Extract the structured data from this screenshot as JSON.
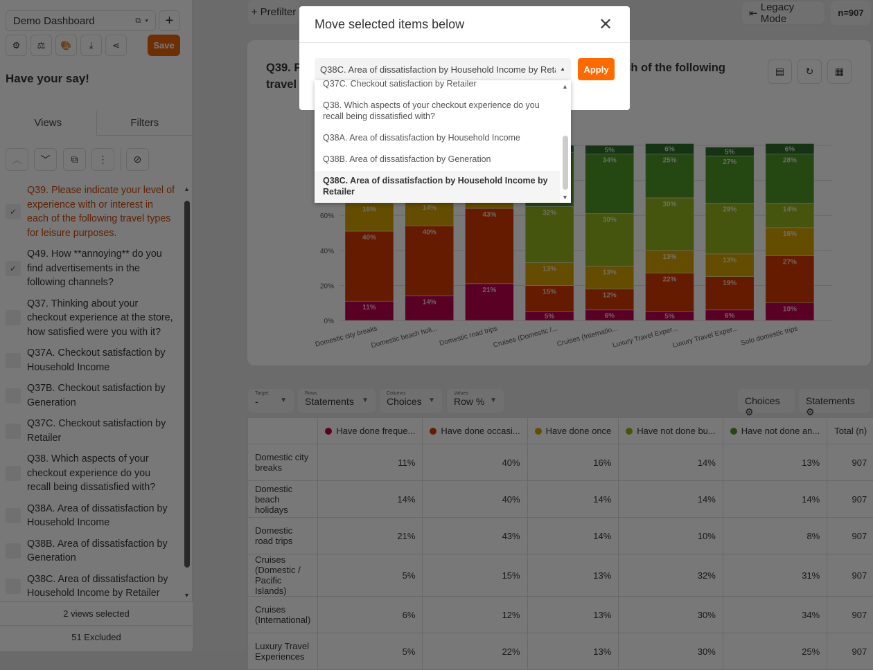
{
  "sidebar": {
    "dashboard_name": "Demo Dashboard",
    "save_label": "Save",
    "heading": "Have your say!",
    "tabs": [
      "Views",
      "Filters"
    ],
    "views": [
      {
        "label": "Q39. Please indicate your level of experience with or interest in each of the following travel types for leisure purposes.",
        "checked": true,
        "active": true
      },
      {
        "label": "Q49. How **annoying** do you find advertisements in the following channels?",
        "checked": true
      },
      {
        "label": "Q37. Thinking about your checkout experience at the store, how satisfied were you with it?",
        "checked": false
      },
      {
        "label": "Q37A. Checkout satisfaction by Household Income",
        "checked": false
      },
      {
        "label": "Q37B. Checkout satisfaction by Generation",
        "checked": false
      },
      {
        "label": "Q37C. Checkout satisfaction by Retailer",
        "checked": false
      },
      {
        "label": "Q38. Which aspects of your checkout experience do you recall being dissatisfied with?",
        "checked": false
      },
      {
        "label": "Q38A. Area of dissatisfaction by Household Income",
        "checked": false
      },
      {
        "label": "Q38B. Area of dissatisfaction by Generation",
        "checked": false
      },
      {
        "label": "Q38C. Area of dissatisfaction by Household Income by Retailer",
        "checked": false
      }
    ],
    "selected_count": "2 views selected",
    "excluded": "51 Excluded"
  },
  "topbar": {
    "prefilter": "Prefilter",
    "legacy_mode": "Legacy Mode",
    "n": "n=907"
  },
  "card": {
    "title": "Q39. Please indicate your level of experience with or interest in each of the following travel types for leisure purposes."
  },
  "controls": {
    "target": {
      "label": "Target",
      "value": "-"
    },
    "rows": {
      "label": "Rows",
      "value": "Statements"
    },
    "columns": {
      "label": "Columns",
      "value": "Choices"
    },
    "values": {
      "label": "Values",
      "value": "Row %"
    },
    "choices_btn": "Choices",
    "statements_btn": "Statements"
  },
  "table": {
    "headers": [
      "Have done freque...",
      "Have done occasi...",
      "Have done once",
      "Have not done bu...",
      "Have not done an...",
      "Total (n)"
    ],
    "rows": [
      {
        "label": "Domestic city breaks",
        "values": [
          "11%",
          "40%",
          "16%",
          "14%",
          "13%",
          "907"
        ]
      },
      {
        "label": "Domestic beach holidays",
        "values": [
          "14%",
          "40%",
          "14%",
          "14%",
          "14%",
          "907"
        ]
      },
      {
        "label": "Domestic road trips",
        "values": [
          "21%",
          "43%",
          "14%",
          "10%",
          "8%",
          "907"
        ]
      },
      {
        "label": "Cruises (Domestic / Pacific Islands)",
        "values": [
          "5%",
          "15%",
          "13%",
          "32%",
          "31%",
          "907"
        ]
      },
      {
        "label": "Cruises (International)",
        "values": [
          "6%",
          "12%",
          "13%",
          "30%",
          "34%",
          "907"
        ]
      },
      {
        "label": "Luxury Travel Experiences",
        "values": [
          "5%",
          "22%",
          "13%",
          "30%",
          "25%",
          "907"
        ]
      }
    ]
  },
  "chart_data": {
    "type": "bar",
    "stacked": true,
    "categories": [
      "Domestic city breaks",
      "Domestic beach holi...",
      "Domestic road trips",
      "Cruises (Domestic /...",
      "Cruises (Internatio...",
      "Luxury Travel Exper...",
      "Luxury Travel Exper...",
      "Solo domestic trips"
    ],
    "ylim": [
      0,
      100
    ],
    "yticks": [
      "0%",
      "20%",
      "40%",
      "60%"
    ],
    "grid": true,
    "series": [
      {
        "name": "Have done freque...",
        "color": "#c2004f",
        "values": [
          11,
          14,
          21,
          5,
          6,
          5,
          6,
          10
        ]
      },
      {
        "name": "Have done occasi...",
        "color": "#d43a00",
        "values": [
          40,
          40,
          43,
          15,
          12,
          22,
          19,
          27
        ]
      },
      {
        "name": "Have done once",
        "color": "#d4a300",
        "values": [
          16,
          14,
          14,
          13,
          13,
          13,
          13,
          16
        ]
      },
      {
        "name": "Have not done bu...",
        "color": "#96b41c",
        "values": [
          14,
          14,
          10,
          32,
          30,
          30,
          29,
          14
        ]
      },
      {
        "name": "Have not done an...",
        "color": "#4f9a28",
        "values": [
          13,
          14,
          8,
          31,
          34,
          25,
          27,
          28
        ]
      },
      {
        "color": "#2f6e2b",
        "values": [
          6,
          4,
          4,
          4,
          5,
          6,
          5,
          6
        ]
      }
    ]
  },
  "modal": {
    "title": "Move selected items below",
    "selected": "Q38C. Area of dissatisfaction by Household Income by Retailer",
    "apply": "Apply",
    "options": [
      "Q37C. Checkout satisfaction by Retailer",
      "Q38. Which aspects of your checkout experience do you recall being dissatisfied with?",
      "Q38A. Area of dissatisfaction by Household Income",
      "Q38B. Area of dissatisfaction by Generation",
      "Q38C. Area of dissatisfaction by Household Income by Retailer"
    ]
  }
}
